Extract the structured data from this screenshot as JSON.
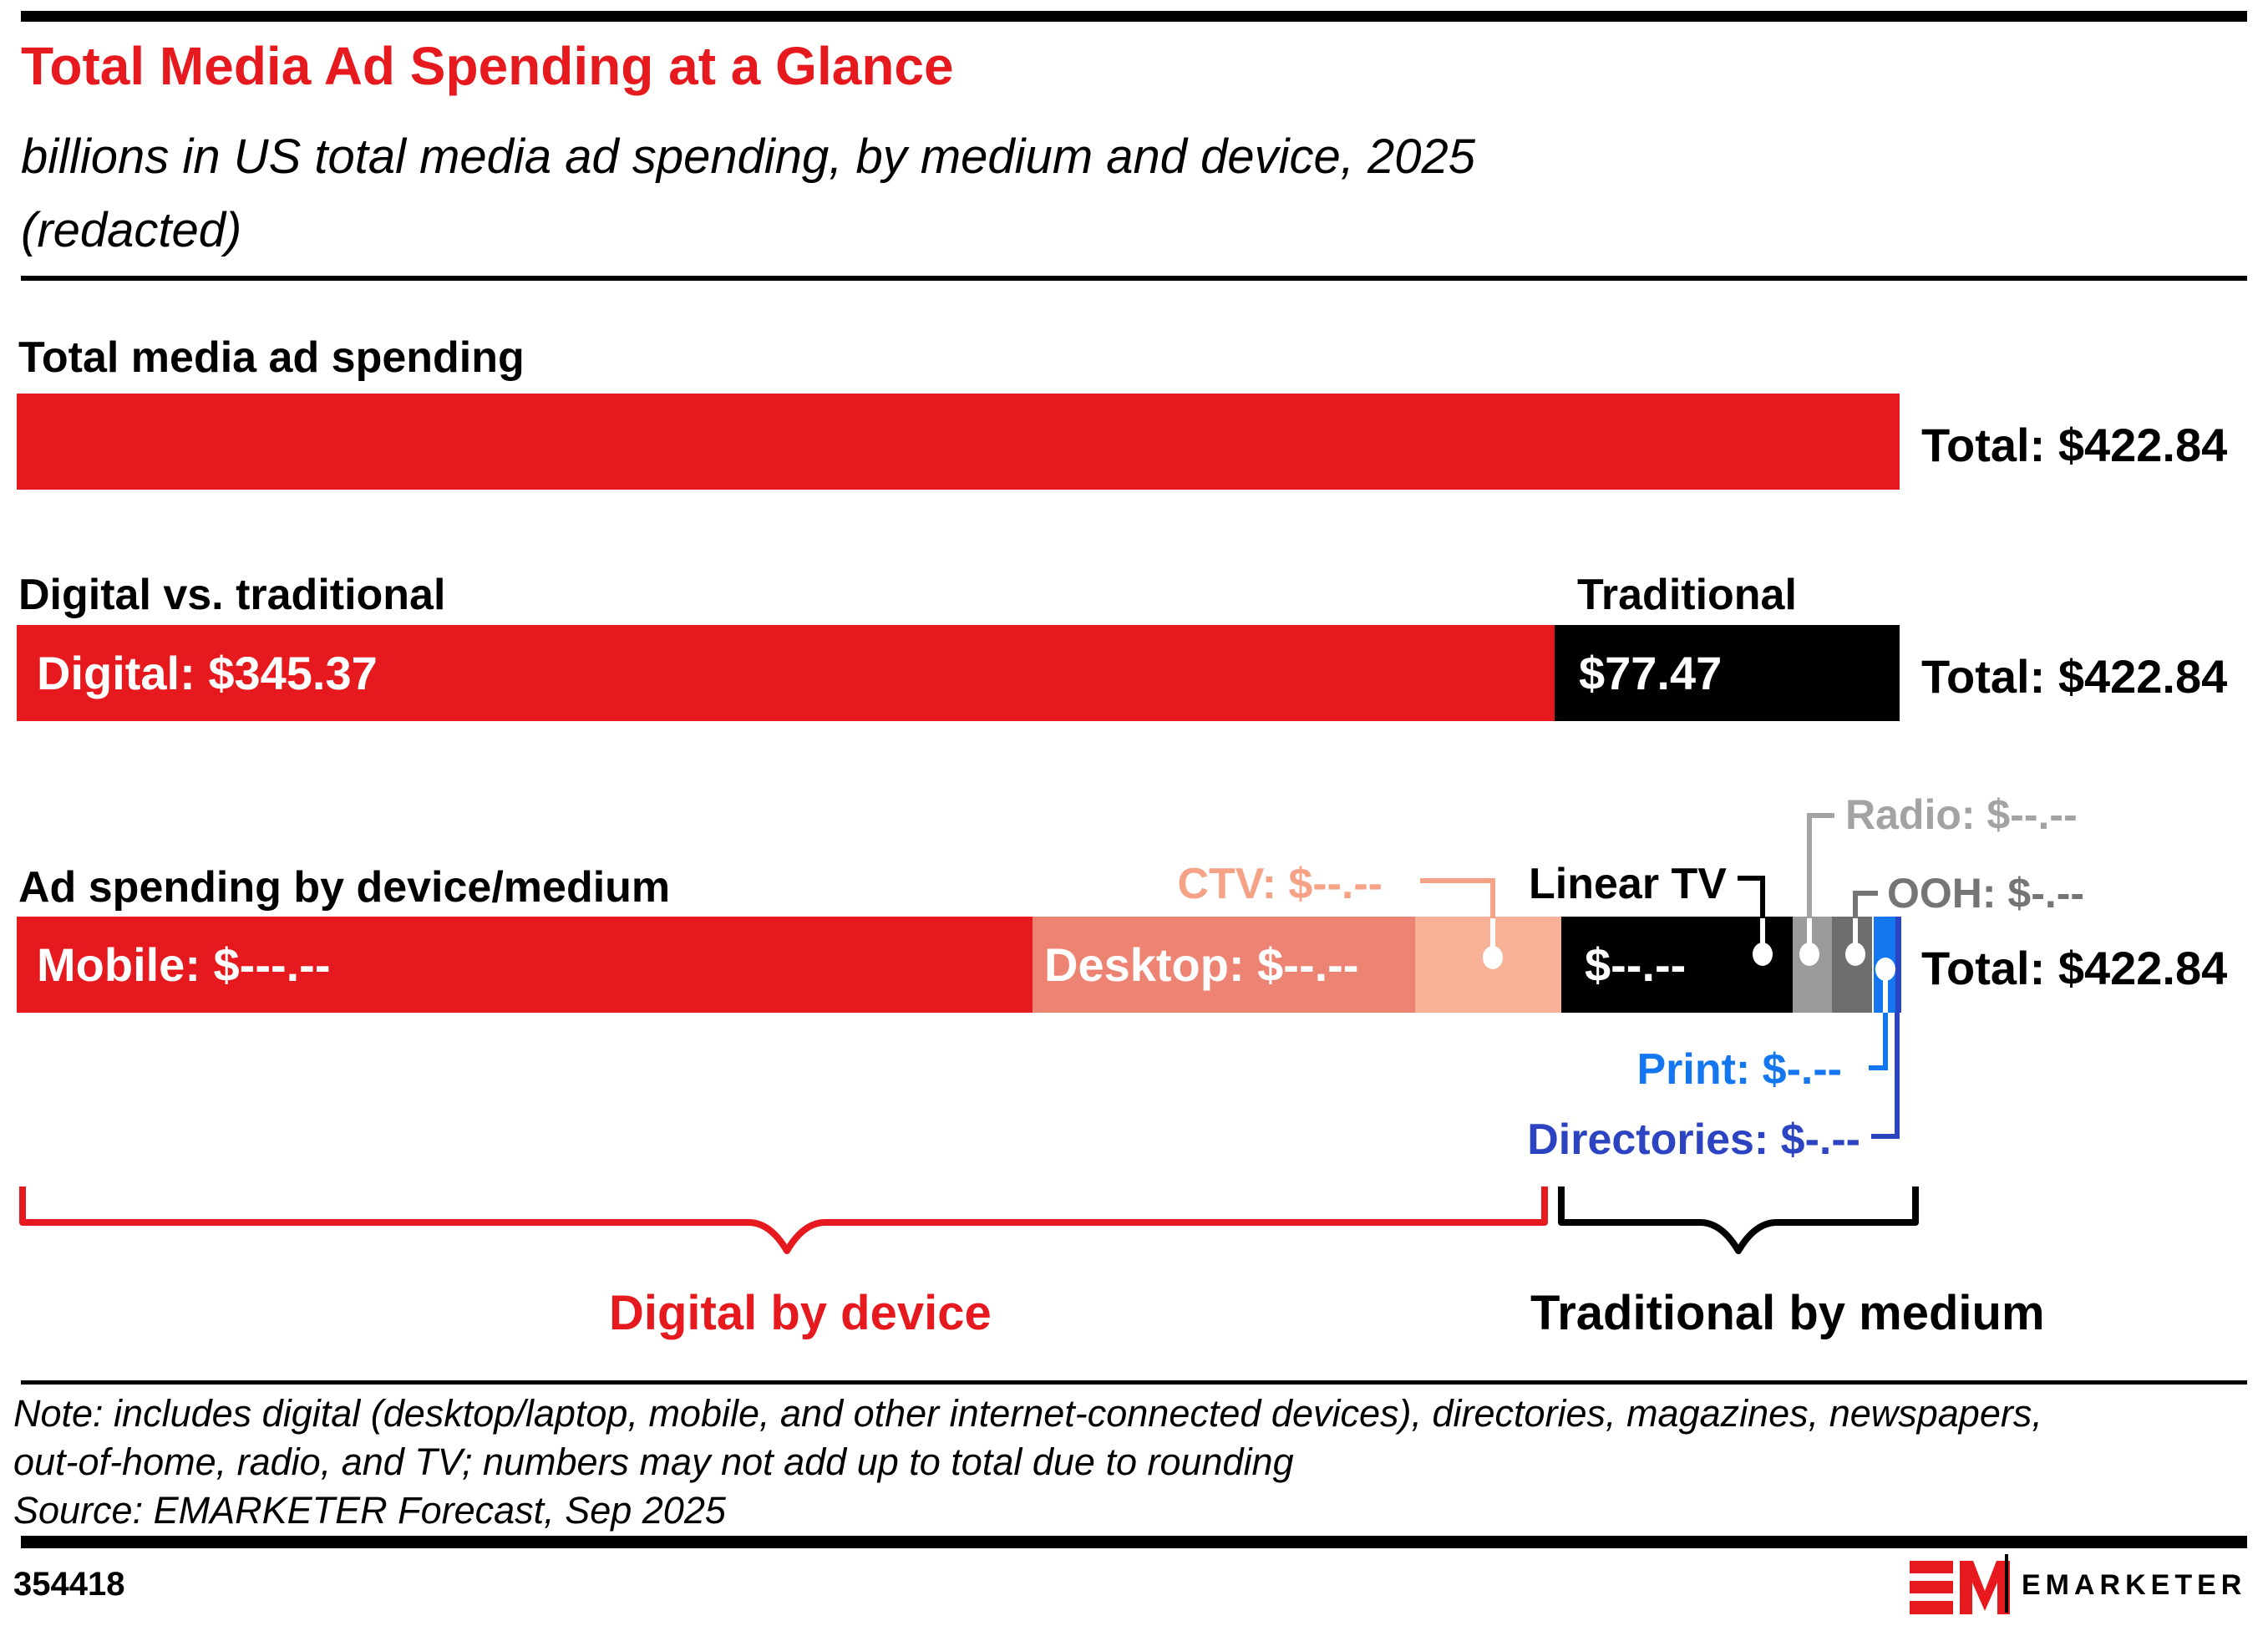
{
  "header": {
    "title": "Total Media Ad Spending at a Glance",
    "subtitle_line1": "billions in US total media ad spending, by medium and device, 2025",
    "subtitle_line2": "(redacted)"
  },
  "row1": {
    "heading": "Total media ad spending",
    "total": "Total: $422.84"
  },
  "row2": {
    "heading": "Digital vs. traditional",
    "traditional_header": "Traditional",
    "digital_label": "Digital: $345.37",
    "traditional_value": "$77.47",
    "total": "Total: $422.84"
  },
  "row3": {
    "heading": "Ad spending by device/medium",
    "mobile_label": "Mobile: $---.--",
    "desktop_label": "Desktop: $--.--",
    "ctv_label": "CTV: $--.--",
    "linear_tv_label": "Linear TV",
    "linear_tv_value": "$--.--",
    "radio_label": "Radio: $--.--",
    "ooh_label": "OOH: $-.--",
    "print_label": "Print: $-.--",
    "directories_label": "Directories: $-.--",
    "total": "Total: $422.84"
  },
  "braces": {
    "digital_group_label": "Digital by device",
    "traditional_group_label": "Traditional by medium"
  },
  "footer": {
    "note_line1": "Note: includes digital (desktop/laptop, mobile, and other internet-connected devices), directories, magazines, newspapers,",
    "note_line2": "out-of-home, radio, and TV; numbers may not add up to total due to rounding",
    "source": "Source: EMARKETER Forecast, Sep 2025",
    "chart_id": "354418",
    "brand": "EMARKETER"
  },
  "colors": {
    "red": "#e6191e",
    "black": "#000000",
    "desktop_salmon": "#ed8473",
    "ctv_pale": "#f7b197",
    "ctv_label_salmon": "#f5a287",
    "radio_gray": "#9b9b9b",
    "radio_label_gray": "#a3a3a3",
    "ooh_gray": "#6e6e6e",
    "ooh_label_gray": "#757575",
    "print_blue": "#1577f0",
    "directories_blue": "#2c44c2"
  },
  "chart_data": {
    "type": "bar",
    "orientation": "horizontal-stacked",
    "unit": "billions USD",
    "year": 2025,
    "title": "Total Media Ad Spending at a Glance",
    "subtitle": "billions in US total media ad spending, by medium and device, 2025 (redacted)",
    "total": 422.84,
    "rows": [
      {
        "label": "Total media ad spending",
        "total": 422.84,
        "segments": [
          {
            "name": "total",
            "value": 422.84,
            "fraction": 1.0,
            "color": "#e6191e"
          }
        ]
      },
      {
        "label": "Digital vs. traditional",
        "total": 422.84,
        "segments": [
          {
            "name": "digital",
            "value": 345.37,
            "fraction": 0.8168,
            "color": "#e6191e"
          },
          {
            "name": "traditional",
            "value": 77.47,
            "fraction": 0.1832,
            "color": "#000000"
          }
        ]
      },
      {
        "label": "Ad spending by device/medium",
        "total": 422.84,
        "segments": [
          {
            "name": "mobile",
            "value_display": "$---.--",
            "value_redacted": true,
            "value_estimate": 228.1,
            "fraction": 0.5395,
            "color": "#e6191e"
          },
          {
            "name": "desktop",
            "value_display": "$--.--",
            "value_redacted": true,
            "value_estimate": 85.9,
            "fraction": 0.2032,
            "color": "#ed8473"
          },
          {
            "name": "ctv",
            "value_display": "$--.--",
            "value_redacted": true,
            "value_estimate": 32.8,
            "fraction": 0.0776,
            "color": "#f7b197"
          },
          {
            "name": "linear_tv",
            "value_display": "$--.--",
            "value_redacted": true,
            "value_estimate": 52.0,
            "fraction": 0.1229,
            "color": "#000000"
          },
          {
            "name": "radio",
            "value_display": "$--.--",
            "value_redacted": true,
            "value_estimate": 8.8,
            "fraction": 0.0209,
            "color": "#9b9b9b"
          },
          {
            "name": "ooh",
            "value_display": "$-.--",
            "value_redacted": true,
            "value_estimate": 9.0,
            "fraction": 0.0213,
            "color": "#6e6e6e"
          },
          {
            "name": "print",
            "value_display": "$-.--",
            "value_redacted": true,
            "value_estimate": 4.9,
            "fraction": 0.0115,
            "color": "#1577f0"
          },
          {
            "name": "directories",
            "value_display": "$-.--",
            "value_redacted": true,
            "value_estimate": 1.3,
            "fraction": 0.0031,
            "color": "#2c44c2"
          }
        ]
      }
    ],
    "groups": [
      {
        "label": "Digital by device",
        "members": [
          "mobile",
          "desktop",
          "ctv"
        ]
      },
      {
        "label": "Traditional by medium",
        "members": [
          "linear_tv",
          "radio",
          "ooh",
          "print",
          "directories"
        ]
      }
    ],
    "legend_position": "inline-callouts",
    "grid": false
  }
}
